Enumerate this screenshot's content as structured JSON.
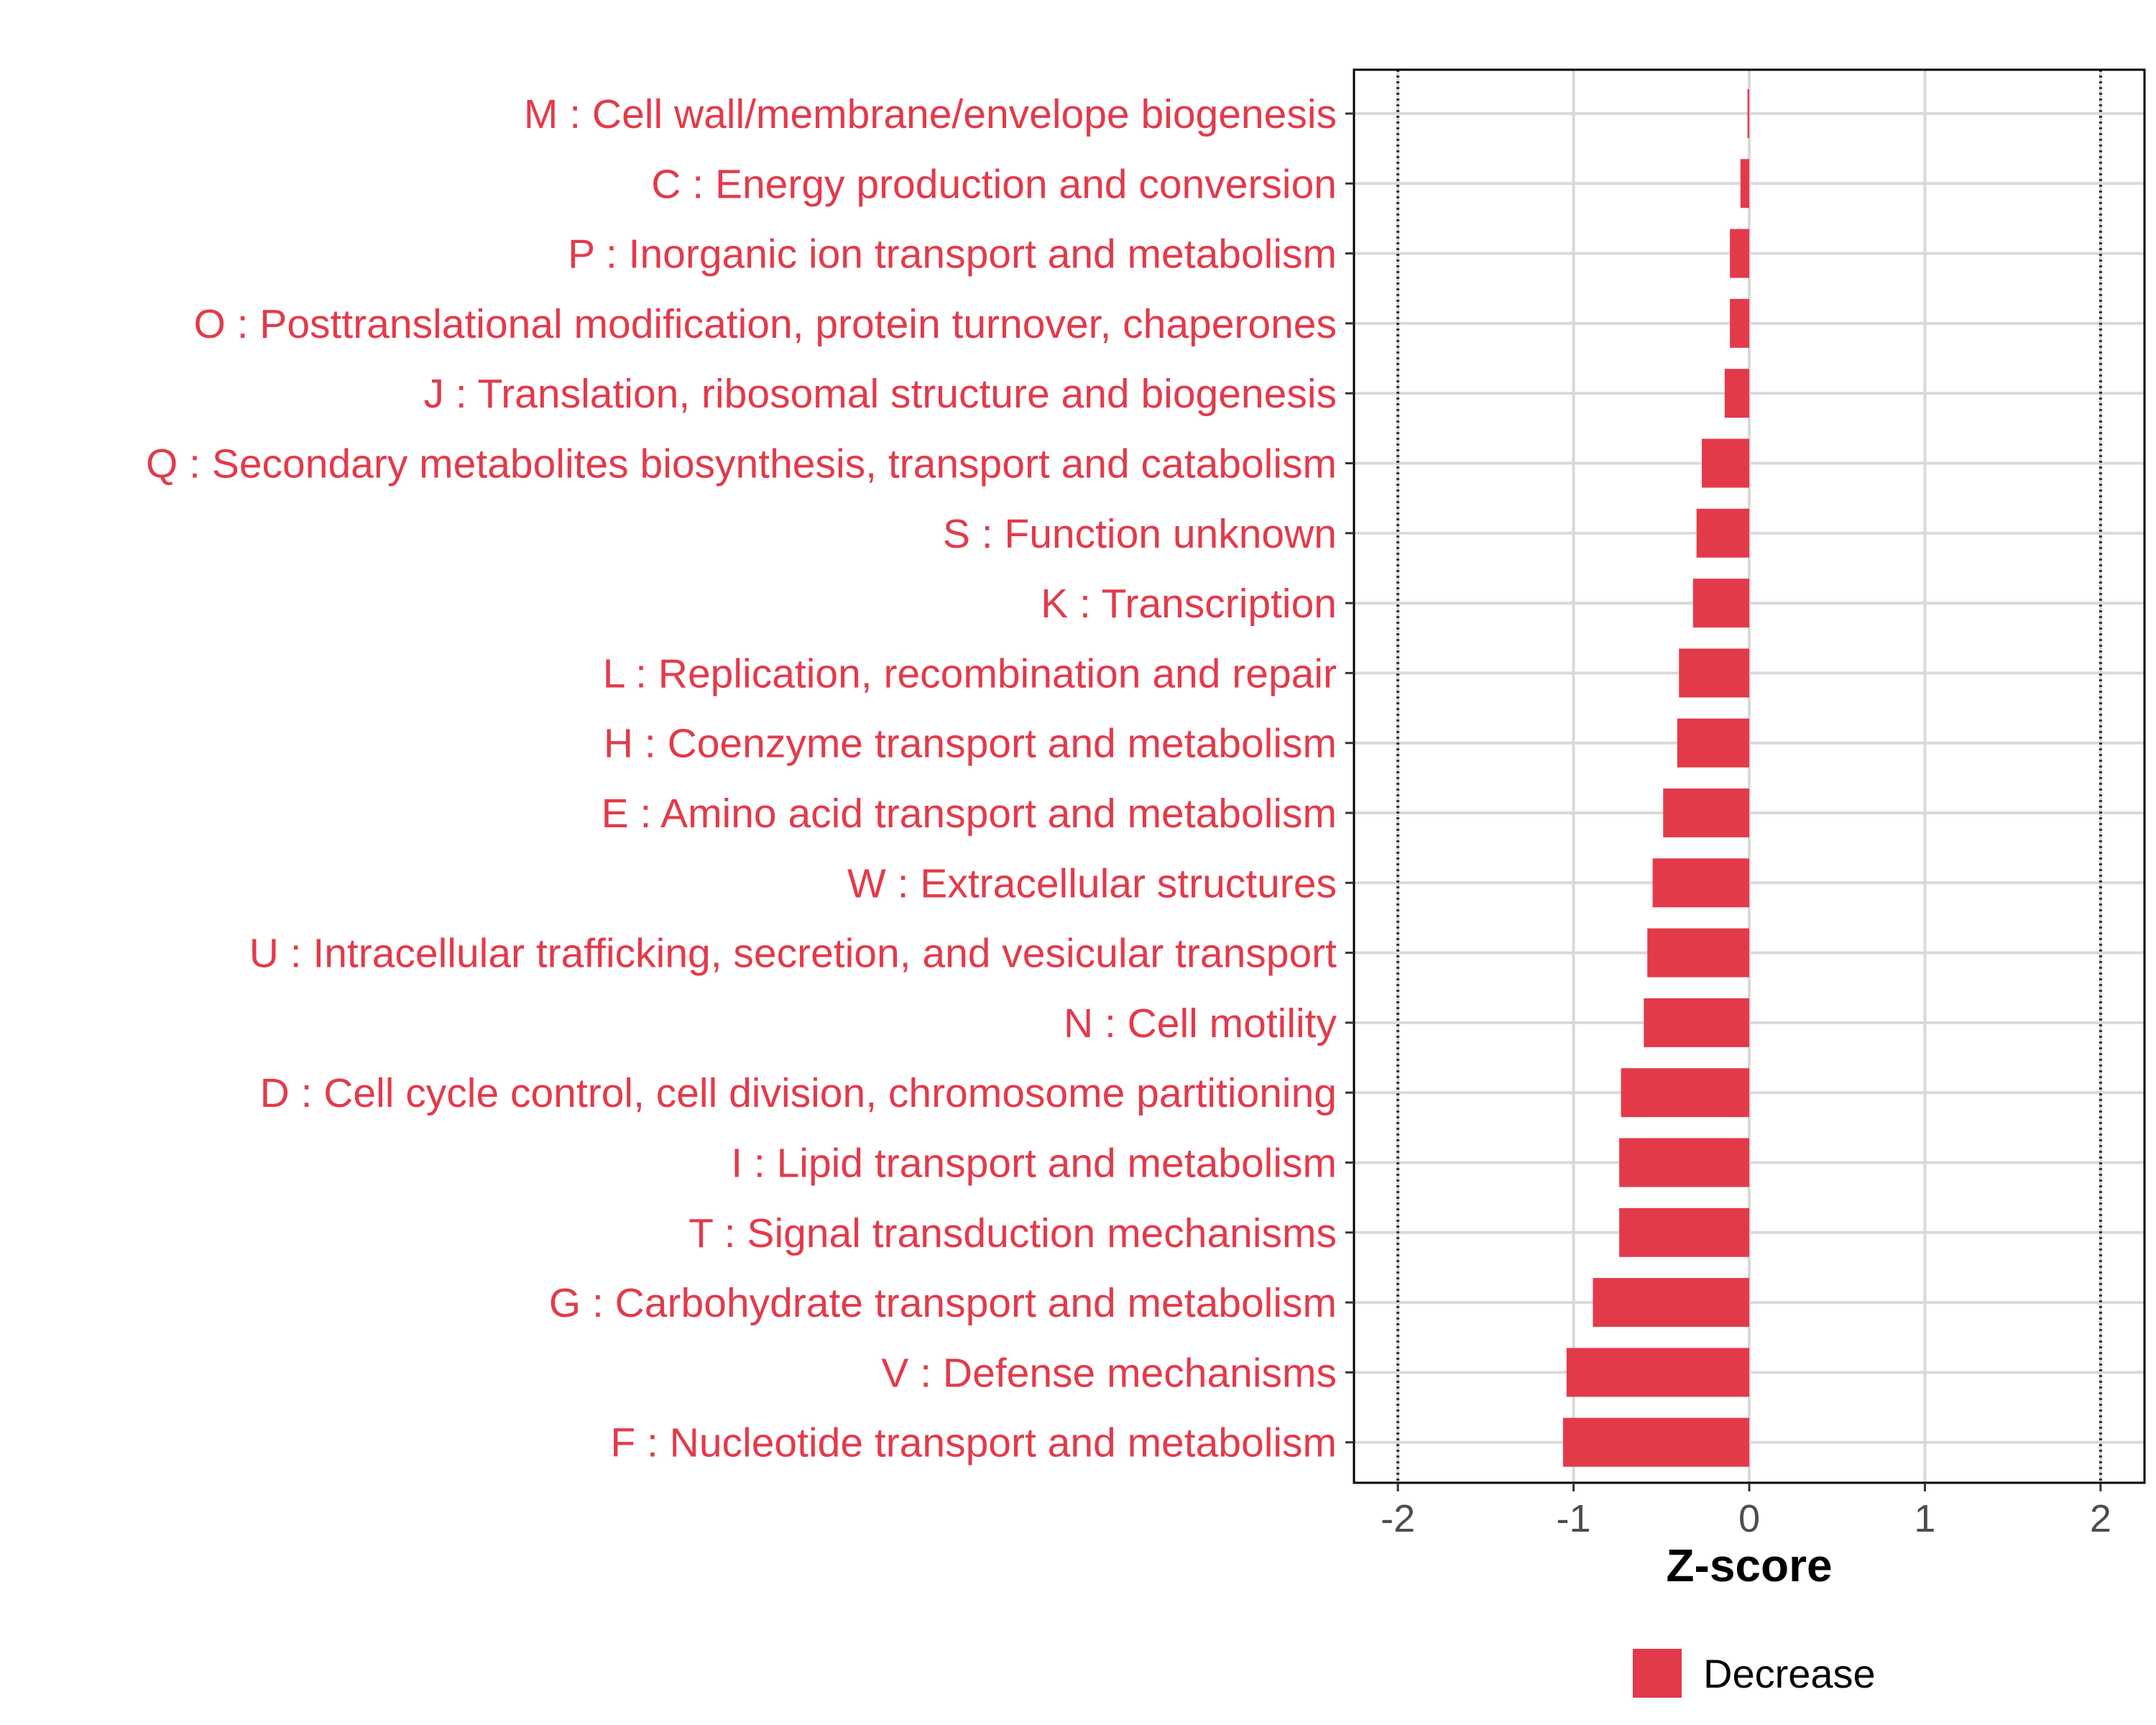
{
  "chart_data": {
    "type": "bar",
    "orientation": "horizontal",
    "categories": [
      "M : Cell wall/membrane/envelope biogenesis",
      "C : Energy production and conversion",
      "P : Inorganic ion transport and metabolism",
      "O : Posttranslational modification, protein turnover, chaperones",
      "J : Translation, ribosomal structure and biogenesis",
      "Q : Secondary metabolites biosynthesis, transport and catabolism",
      "S : Function unknown",
      "K : Transcription",
      "L : Replication, recombination and repair",
      "H : Coenzyme transport and metabolism",
      "E : Amino acid transport and metabolism",
      "W : Extracellular structures",
      "U : Intracellular trafficking, secretion, and vesicular transport",
      "N : Cell motility",
      "D : Cell cycle control, cell division, chromosome partitioning",
      "I : Lipid transport and metabolism",
      "T : Signal transduction mechanisms",
      "G : Carbohydrate transport and metabolism",
      "V : Defense mechanisms",
      "F : Nucleotide transport and metabolism"
    ],
    "values": [
      -0.01,
      -0.05,
      -0.11,
      -0.11,
      -0.14,
      -0.27,
      -0.3,
      -0.32,
      -0.4,
      -0.41,
      -0.49,
      -0.55,
      -0.58,
      -0.6,
      -0.73,
      -0.74,
      -0.74,
      -0.89,
      -1.04,
      -1.06
    ],
    "xlabel": "Z-score",
    "xlim": [
      -2.25,
      2.25
    ],
    "xticks": [
      "-2",
      "-1",
      "0",
      "1",
      "2"
    ],
    "threshold_lines": [
      -2,
      2
    ],
    "grid": true,
    "legend": {
      "position": "bottom",
      "entries": [
        {
          "label": "Decrease",
          "color": "#E33A4A"
        }
      ]
    },
    "colors": {
      "bar": "#E33A4A",
      "label": "#E33A4A",
      "grid": "#d9d9d9",
      "threshold": "#333333"
    }
  }
}
